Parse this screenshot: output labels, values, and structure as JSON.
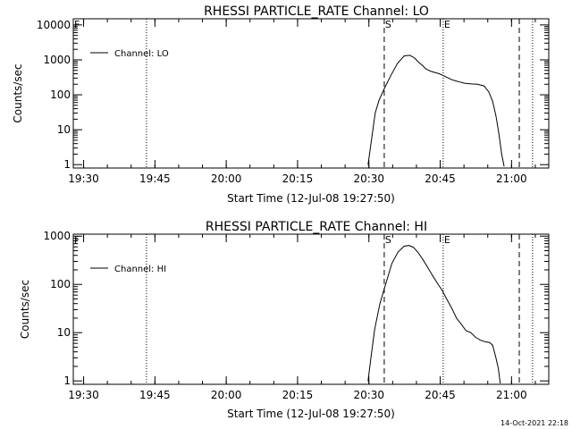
{
  "stamp": "14-Oct-2021 22:18",
  "chart_data": [
    {
      "type": "line",
      "title": "RHESSI PARTICLE_RATE Channel: LO",
      "xlabel": "Start Time (12-Jul-08 19:27:50)",
      "ylabel": "Counts/sec",
      "x_unit": "minutes since 19:27:50",
      "x_ticks": [
        {
          "label": "19:30",
          "x": 2.17
        },
        {
          "label": "19:45",
          "x": 17.17
        },
        {
          "label": "20:00",
          "x": 32.17
        },
        {
          "label": "20:15",
          "x": 47.17
        },
        {
          "label": "20:30",
          "x": 62.17
        },
        {
          "label": "20:45",
          "x": 77.17
        },
        {
          "label": "21:00",
          "x": 92.17
        }
      ],
      "y_ticks": [
        {
          "label": "1",
          "v": 1
        },
        {
          "label": "10",
          "v": 10
        },
        {
          "label": "100",
          "v": 100
        },
        {
          "label": "1000",
          "v": 1000
        },
        {
          "label": "10000",
          "v": 10000
        }
      ],
      "yscale": "log",
      "xlim": [
        0,
        100
      ],
      "ylim": [
        0.8,
        15000
      ],
      "grid": false,
      "legend_position": "top-left",
      "series": [
        {
          "name": "Channel: LO",
          "x": [
            62.0,
            62.7,
            63.5,
            64.3,
            65.5,
            66.8,
            68.2,
            69.6,
            70.8,
            71.8,
            72.6,
            73.4,
            74.1,
            75.0,
            75.9,
            77.0,
            78.3,
            79.6,
            80.9,
            82.3,
            83.7,
            85.0,
            86.4,
            87.4,
            88.2,
            88.9,
            89.5,
            90.1,
            90.6
          ],
          "y": [
            1.0,
            5.0,
            30,
            70,
            160,
            360,
            800,
            1300,
            1350,
            1120,
            860,
            700,
            560,
            480,
            440,
            400,
            330,
            270,
            240,
            215,
            205,
            200,
            180,
            120,
            65,
            25,
            8,
            2,
            0.9
          ]
        }
      ],
      "markers": [
        {
          "label": "F",
          "x": 0,
          "style": "dotted"
        },
        {
          "label": "",
          "x": 15.4,
          "style": "dotted"
        },
        {
          "label": "S",
          "x": 65.4,
          "style": "dashed"
        },
        {
          "label": "E",
          "x": 77.8,
          "style": "dotted"
        },
        {
          "label": "",
          "x": 93.8,
          "style": "dashed"
        },
        {
          "label": "",
          "x": 96.6,
          "style": "dotted"
        }
      ]
    },
    {
      "type": "line",
      "title": "RHESSI PARTICLE_RATE Channel: HI",
      "xlabel": "Start Time (12-Jul-08 19:27:50)",
      "ylabel": "Counts/sec",
      "x_unit": "minutes since 19:27:50",
      "x_ticks": [
        {
          "label": "19:30",
          "x": 2.17
        },
        {
          "label": "19:45",
          "x": 17.17
        },
        {
          "label": "20:00",
          "x": 32.17
        },
        {
          "label": "20:15",
          "x": 47.17
        },
        {
          "label": "20:30",
          "x": 62.17
        },
        {
          "label": "20:45",
          "x": 77.17
        },
        {
          "label": "21:00",
          "x": 92.17
        }
      ],
      "y_ticks": [
        {
          "label": "1",
          "v": 1
        },
        {
          "label": "10",
          "v": 10
        },
        {
          "label": "100",
          "v": 100
        },
        {
          "label": "1000",
          "v": 1000
        }
      ],
      "yscale": "log",
      "xlim": [
        0,
        100
      ],
      "ylim": [
        0.85,
        1100
      ],
      "grid": false,
      "legend_position": "top-left",
      "series": [
        {
          "name": "Channel: HI",
          "x": [
            62.0,
            62.6,
            63.4,
            64.5,
            65.8,
            67.0,
            68.3,
            69.6,
            70.6,
            71.5,
            72.5,
            73.5,
            74.5,
            75.6,
            76.6,
            77.6,
            78.6,
            79.6,
            80.6,
            81.6,
            82.6,
            83.6,
            84.6,
            85.6,
            86.6,
            87.6,
            88.2,
            88.9,
            89.4,
            89.8
          ],
          "y": [
            1.0,
            3,
            12,
            40,
            110,
            270,
            470,
            620,
            640,
            590,
            460,
            330,
            230,
            150,
            105,
            75,
            48,
            32,
            20,
            15,
            11,
            10,
            8,
            7,
            6.5,
            6.2,
            5.5,
            3,
            1.8,
            0.9
          ]
        }
      ],
      "markers": [
        {
          "label": "F",
          "x": 0,
          "style": "dotted"
        },
        {
          "label": "",
          "x": 15.4,
          "style": "dotted"
        },
        {
          "label": "S",
          "x": 65.4,
          "style": "dashed"
        },
        {
          "label": "E",
          "x": 77.8,
          "style": "dotted"
        },
        {
          "label": "",
          "x": 93.8,
          "style": "dashed"
        },
        {
          "label": "",
          "x": 96.6,
          "style": "dotted"
        }
      ]
    }
  ]
}
